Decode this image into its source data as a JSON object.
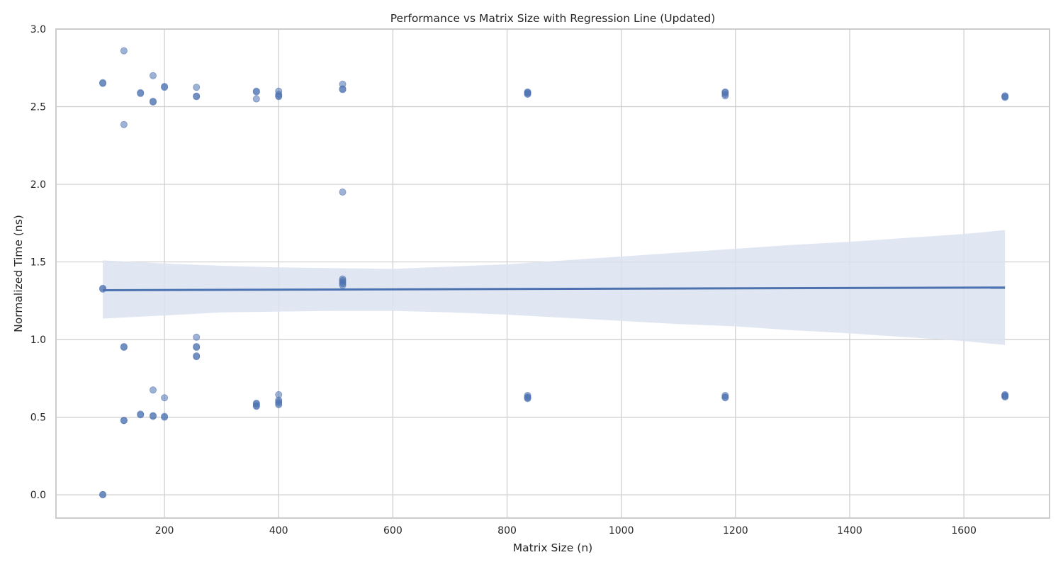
{
  "chart_data": {
    "type": "scatter",
    "title": "Performance vs Matrix Size with Regression Line (Updated)",
    "xlabel": "Matrix Size (n)",
    "ylabel": "Normalized Time (ns)",
    "xlim": [
      10,
      1750
    ],
    "ylim": [
      -0.15,
      3.0
    ],
    "xticks": [
      200,
      400,
      600,
      800,
      1000,
      1200,
      1400,
      1600
    ],
    "yticks": [
      0.0,
      0.5,
      1.0,
      1.5,
      2.0,
      2.5,
      3.0
    ],
    "xtick_labels": [
      "200",
      "400",
      "600",
      "800",
      "1000",
      "1200",
      "1400",
      "1600"
    ],
    "ytick_labels": [
      "0.0",
      "0.5",
      "1.0",
      "1.5",
      "2.0",
      "2.5",
      "3.0"
    ],
    "grid": true,
    "colors": {
      "points": "#4c72b0",
      "line": "#4c72b0",
      "band": "#dce3f0",
      "grid": "#cccccc",
      "frame": "#cccccc"
    },
    "points": [
      {
        "x": 92,
        "y": 2.655
      },
      {
        "x": 92,
        "y": 2.65
      },
      {
        "x": 92,
        "y": 1.33
      },
      {
        "x": 92,
        "y": 1.325
      },
      {
        "x": 92,
        "y": 0.0
      },
      {
        "x": 92,
        "y": 0.002
      },
      {
        "x": 129,
        "y": 2.86
      },
      {
        "x": 129,
        "y": 2.385
      },
      {
        "x": 129,
        "y": 0.955
      },
      {
        "x": 129,
        "y": 0.95
      },
      {
        "x": 129,
        "y": 0.48
      },
      {
        "x": 129,
        "y": 0.478
      },
      {
        "x": 158,
        "y": 2.59
      },
      {
        "x": 158,
        "y": 2.585
      },
      {
        "x": 158,
        "y": 0.52
      },
      {
        "x": 158,
        "y": 0.515
      },
      {
        "x": 180,
        "y": 2.7
      },
      {
        "x": 180,
        "y": 2.535
      },
      {
        "x": 180,
        "y": 2.53
      },
      {
        "x": 180,
        "y": 0.675
      },
      {
        "x": 180,
        "y": 0.51
      },
      {
        "x": 180,
        "y": 0.505
      },
      {
        "x": 200,
        "y": 2.63
      },
      {
        "x": 200,
        "y": 2.625
      },
      {
        "x": 200,
        "y": 0.625
      },
      {
        "x": 200,
        "y": 0.505
      },
      {
        "x": 200,
        "y": 0.5
      },
      {
        "x": 256,
        "y": 2.625
      },
      {
        "x": 256,
        "y": 2.568
      },
      {
        "x": 256,
        "y": 2.565
      },
      {
        "x": 256,
        "y": 1.015
      },
      {
        "x": 256,
        "y": 0.955
      },
      {
        "x": 256,
        "y": 0.95
      },
      {
        "x": 256,
        "y": 0.895
      },
      {
        "x": 256,
        "y": 0.89
      },
      {
        "x": 361,
        "y": 2.6
      },
      {
        "x": 361,
        "y": 2.595
      },
      {
        "x": 361,
        "y": 2.55
      },
      {
        "x": 361,
        "y": 0.59
      },
      {
        "x": 361,
        "y": 0.585
      },
      {
        "x": 361,
        "y": 0.575
      },
      {
        "x": 361,
        "y": 0.57
      },
      {
        "x": 400,
        "y": 2.6
      },
      {
        "x": 400,
        "y": 2.58
      },
      {
        "x": 400,
        "y": 2.57
      },
      {
        "x": 400,
        "y": 2.565
      },
      {
        "x": 400,
        "y": 0.645
      },
      {
        "x": 400,
        "y": 0.61
      },
      {
        "x": 400,
        "y": 0.6
      },
      {
        "x": 400,
        "y": 0.59
      },
      {
        "x": 400,
        "y": 0.58
      },
      {
        "x": 512,
        "y": 2.645
      },
      {
        "x": 512,
        "y": 2.615
      },
      {
        "x": 512,
        "y": 2.61
      },
      {
        "x": 512,
        "y": 1.95
      },
      {
        "x": 512,
        "y": 1.39
      },
      {
        "x": 512,
        "y": 1.38
      },
      {
        "x": 512,
        "y": 1.37
      },
      {
        "x": 512,
        "y": 1.36
      },
      {
        "x": 512,
        "y": 1.35
      },
      {
        "x": 836,
        "y": 2.595
      },
      {
        "x": 836,
        "y": 2.59
      },
      {
        "x": 836,
        "y": 2.585
      },
      {
        "x": 836,
        "y": 2.58
      },
      {
        "x": 836,
        "y": 0.64
      },
      {
        "x": 836,
        "y": 0.63
      },
      {
        "x": 836,
        "y": 0.625
      },
      {
        "x": 836,
        "y": 0.62
      },
      {
        "x": 1182,
        "y": 2.595
      },
      {
        "x": 1182,
        "y": 2.59
      },
      {
        "x": 1182,
        "y": 2.58
      },
      {
        "x": 1182,
        "y": 2.57
      },
      {
        "x": 1182,
        "y": 0.64
      },
      {
        "x": 1182,
        "y": 0.63
      },
      {
        "x": 1182,
        "y": 0.625
      },
      {
        "x": 1672,
        "y": 2.57
      },
      {
        "x": 1672,
        "y": 2.565
      },
      {
        "x": 1672,
        "y": 2.56
      },
      {
        "x": 1672,
        "y": 0.645
      },
      {
        "x": 1672,
        "y": 0.64
      },
      {
        "x": 1672,
        "y": 0.635
      },
      {
        "x": 1672,
        "y": 0.63
      }
    ],
    "regression": {
      "x": [
        92,
        1672
      ],
      "y": [
        1.318,
        1.335
      ]
    },
    "confidence_band": {
      "x": [
        92,
        200,
        300,
        400,
        500,
        600,
        700,
        800,
        900,
        1000,
        1100,
        1200,
        1300,
        1400,
        1500,
        1600,
        1672
      ],
      "upper": [
        1.51,
        1.49,
        1.475,
        1.465,
        1.46,
        1.455,
        1.47,
        1.485,
        1.51,
        1.535,
        1.56,
        1.585,
        1.61,
        1.63,
        1.655,
        1.68,
        1.705
      ],
      "lower": [
        1.135,
        1.155,
        1.175,
        1.18,
        1.185,
        1.185,
        1.175,
        1.16,
        1.14,
        1.12,
        1.1,
        1.085,
        1.06,
        1.04,
        1.015,
        0.99,
        0.965
      ]
    }
  }
}
